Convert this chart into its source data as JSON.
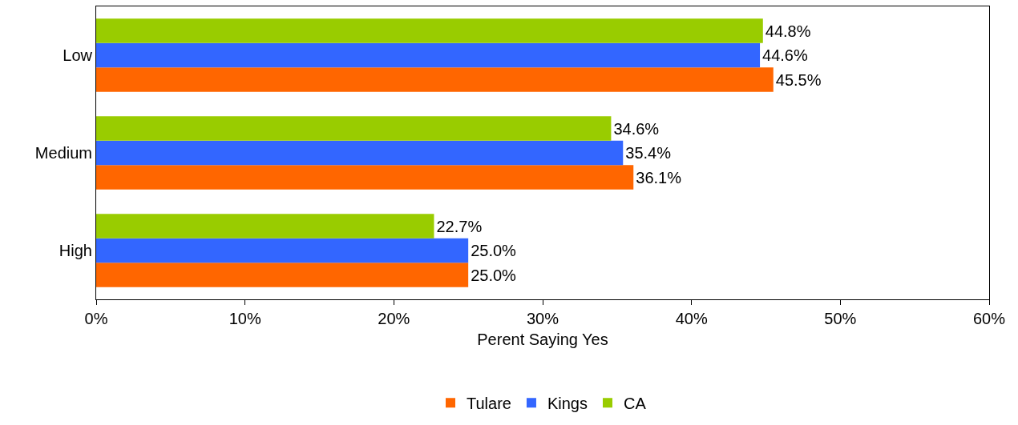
{
  "chart_data": {
    "type": "bar",
    "orientation": "horizontal",
    "xlabel": "Perent Saying Yes",
    "categories": [
      "Low",
      "Medium",
      "High"
    ],
    "series": [
      {
        "name": "Tulare",
        "color": "#ff6600",
        "values": [
          45.5,
          36.1,
          25.0
        ],
        "value_labels": [
          "45.5%",
          "36.1%",
          "25.0%"
        ]
      },
      {
        "name": "Kings",
        "color": "#3366ff",
        "values": [
          44.6,
          35.4,
          25.0
        ],
        "value_labels": [
          "44.6%",
          "35.4%",
          "25.0%"
        ]
      },
      {
        "name": "CA",
        "color": "#99cc00",
        "values": [
          44.8,
          34.6,
          22.7
        ],
        "value_labels": [
          "44.8%",
          "34.6%",
          "22.7%"
        ]
      }
    ],
    "xlim": [
      0,
      60
    ],
    "xticks": [
      {
        "value": 0,
        "label": "0%"
      },
      {
        "value": 10,
        "label": "10%"
      },
      {
        "value": 20,
        "label": "20%"
      },
      {
        "value": 30,
        "label": "30%"
      },
      {
        "value": 40,
        "label": "40%"
      },
      {
        "value": 50,
        "label": "50%"
      },
      {
        "value": 60,
        "label": "60%"
      }
    ],
    "legend": "bottom"
  }
}
